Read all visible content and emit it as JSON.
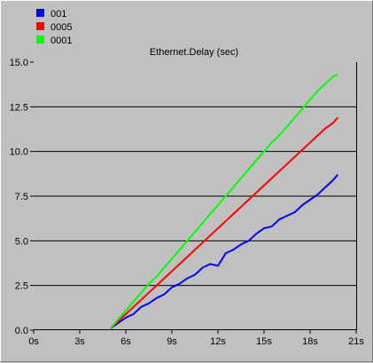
{
  "chart_data": {
    "type": "line",
    "title": "Ethernet.Delay (sec)",
    "xlabel": "",
    "ylabel": "",
    "xlim": [
      0,
      21
    ],
    "ylim": [
      0,
      15
    ],
    "x_ticks": [
      0,
      3,
      6,
      9,
      12,
      15,
      18,
      21
    ],
    "x_tick_labels": [
      "0s",
      "3s",
      "6s",
      "9s",
      "12s",
      "15s",
      "18s",
      "21s"
    ],
    "y_ticks": [
      0,
      2.5,
      5,
      7.5,
      10,
      12.5,
      15
    ],
    "y_tick_labels": [
      "0.0",
      "2.5",
      "5.0",
      "7.5",
      "10.0",
      "12.5",
      "15.0"
    ],
    "grid": "horizontal",
    "legend": "top-left",
    "series": [
      {
        "name": "001",
        "color": "#0000ff",
        "x": [
          5,
          5.5,
          6,
          6.5,
          7,
          7.5,
          8,
          8.5,
          9,
          9.5,
          10,
          10.5,
          11,
          11.5,
          12,
          12.5,
          13,
          13.5,
          14,
          14.5,
          15,
          15.5,
          16,
          16.5,
          17,
          17.5,
          18,
          18.5,
          19,
          19.5,
          19.8
        ],
        "y": [
          0.1,
          0.4,
          0.7,
          0.9,
          1.3,
          1.5,
          1.8,
          2.0,
          2.4,
          2.6,
          2.9,
          3.1,
          3.5,
          3.7,
          3.6,
          4.3,
          4.5,
          4.8,
          5.0,
          5.4,
          5.7,
          5.8,
          6.2,
          6.4,
          6.6,
          7.0,
          7.3,
          7.6,
          8.0,
          8.4,
          8.7
        ]
      },
      {
        "name": "0005",
        "color": "#ff0000",
        "x": [
          5,
          5.5,
          6,
          6.5,
          7,
          7.5,
          8,
          8.5,
          9,
          9.5,
          10,
          10.5,
          11,
          11.5,
          12,
          12.5,
          13,
          13.5,
          14,
          14.5,
          15,
          15.5,
          16,
          16.5,
          17,
          17.5,
          18,
          18.5,
          19,
          19.5,
          19.8
        ],
        "y": [
          0.1,
          0.5,
          0.9,
          1.3,
          1.7,
          2.1,
          2.5,
          2.9,
          3.3,
          3.7,
          4.1,
          4.5,
          4.9,
          5.3,
          5.7,
          6.1,
          6.5,
          6.9,
          7.3,
          7.7,
          8.1,
          8.5,
          8.9,
          9.3,
          9.7,
          10.1,
          10.5,
          10.9,
          11.3,
          11.6,
          11.9
        ]
      },
      {
        "name": "0001",
        "color": "#00ff00",
        "x": [
          5,
          5.5,
          6,
          6.5,
          7,
          7.5,
          8,
          8.5,
          9,
          9.5,
          10,
          10.5,
          11,
          11.5,
          12,
          12.5,
          13,
          13.5,
          14,
          14.5,
          15,
          15.5,
          16,
          16.5,
          17,
          17.5,
          18,
          18.5,
          19,
          19.5,
          19.8
        ],
        "y": [
          0.1,
          0.6,
          1.1,
          1.6,
          2.1,
          2.6,
          3.0,
          3.5,
          4.0,
          4.5,
          5.0,
          5.5,
          6.0,
          6.5,
          7.0,
          7.5,
          8.0,
          8.5,
          9.0,
          9.5,
          10.0,
          10.5,
          10.9,
          11.4,
          11.9,
          12.4,
          12.9,
          13.4,
          13.8,
          14.2,
          14.3
        ]
      }
    ]
  }
}
